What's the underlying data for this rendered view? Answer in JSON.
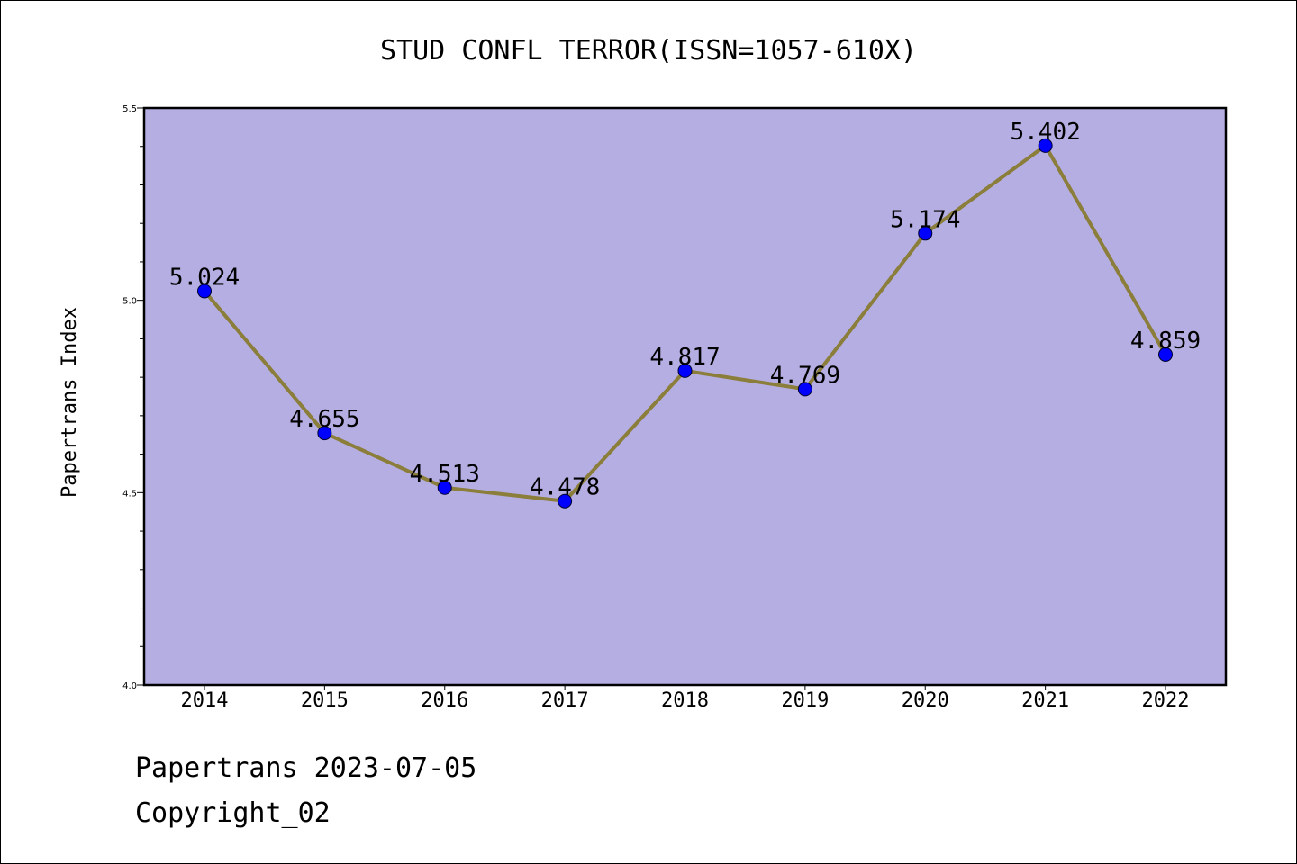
{
  "chart_data": {
    "type": "line",
    "title": "STUD CONFL TERROR(ISSN=1057-610X)",
    "ylabel": "Papertrans Index",
    "xlabel": "",
    "ylim": [
      4.0,
      5.5
    ],
    "yticks": [
      "4.0",
      "4.5",
      "5.0",
      "5.5"
    ],
    "categories": [
      "2014",
      "2015",
      "2016",
      "2017",
      "2018",
      "2019",
      "2020",
      "2021",
      "2022"
    ],
    "values": [
      5.024,
      4.655,
      4.513,
      4.478,
      4.817,
      4.769,
      5.174,
      5.402,
      4.859
    ],
    "labels": [
      "5.024",
      "4.655",
      "4.513",
      "4.478",
      "4.817",
      "4.769",
      "5.174",
      "5.402",
      "4.859"
    ],
    "grid": false,
    "colors": {
      "plot_background": "#b4aee2",
      "line": "#8b7d3a",
      "marker": "#0000ff"
    }
  },
  "footer": {
    "line1": "Papertrans 2023-07-05",
    "line2": "Copyright_02"
  }
}
